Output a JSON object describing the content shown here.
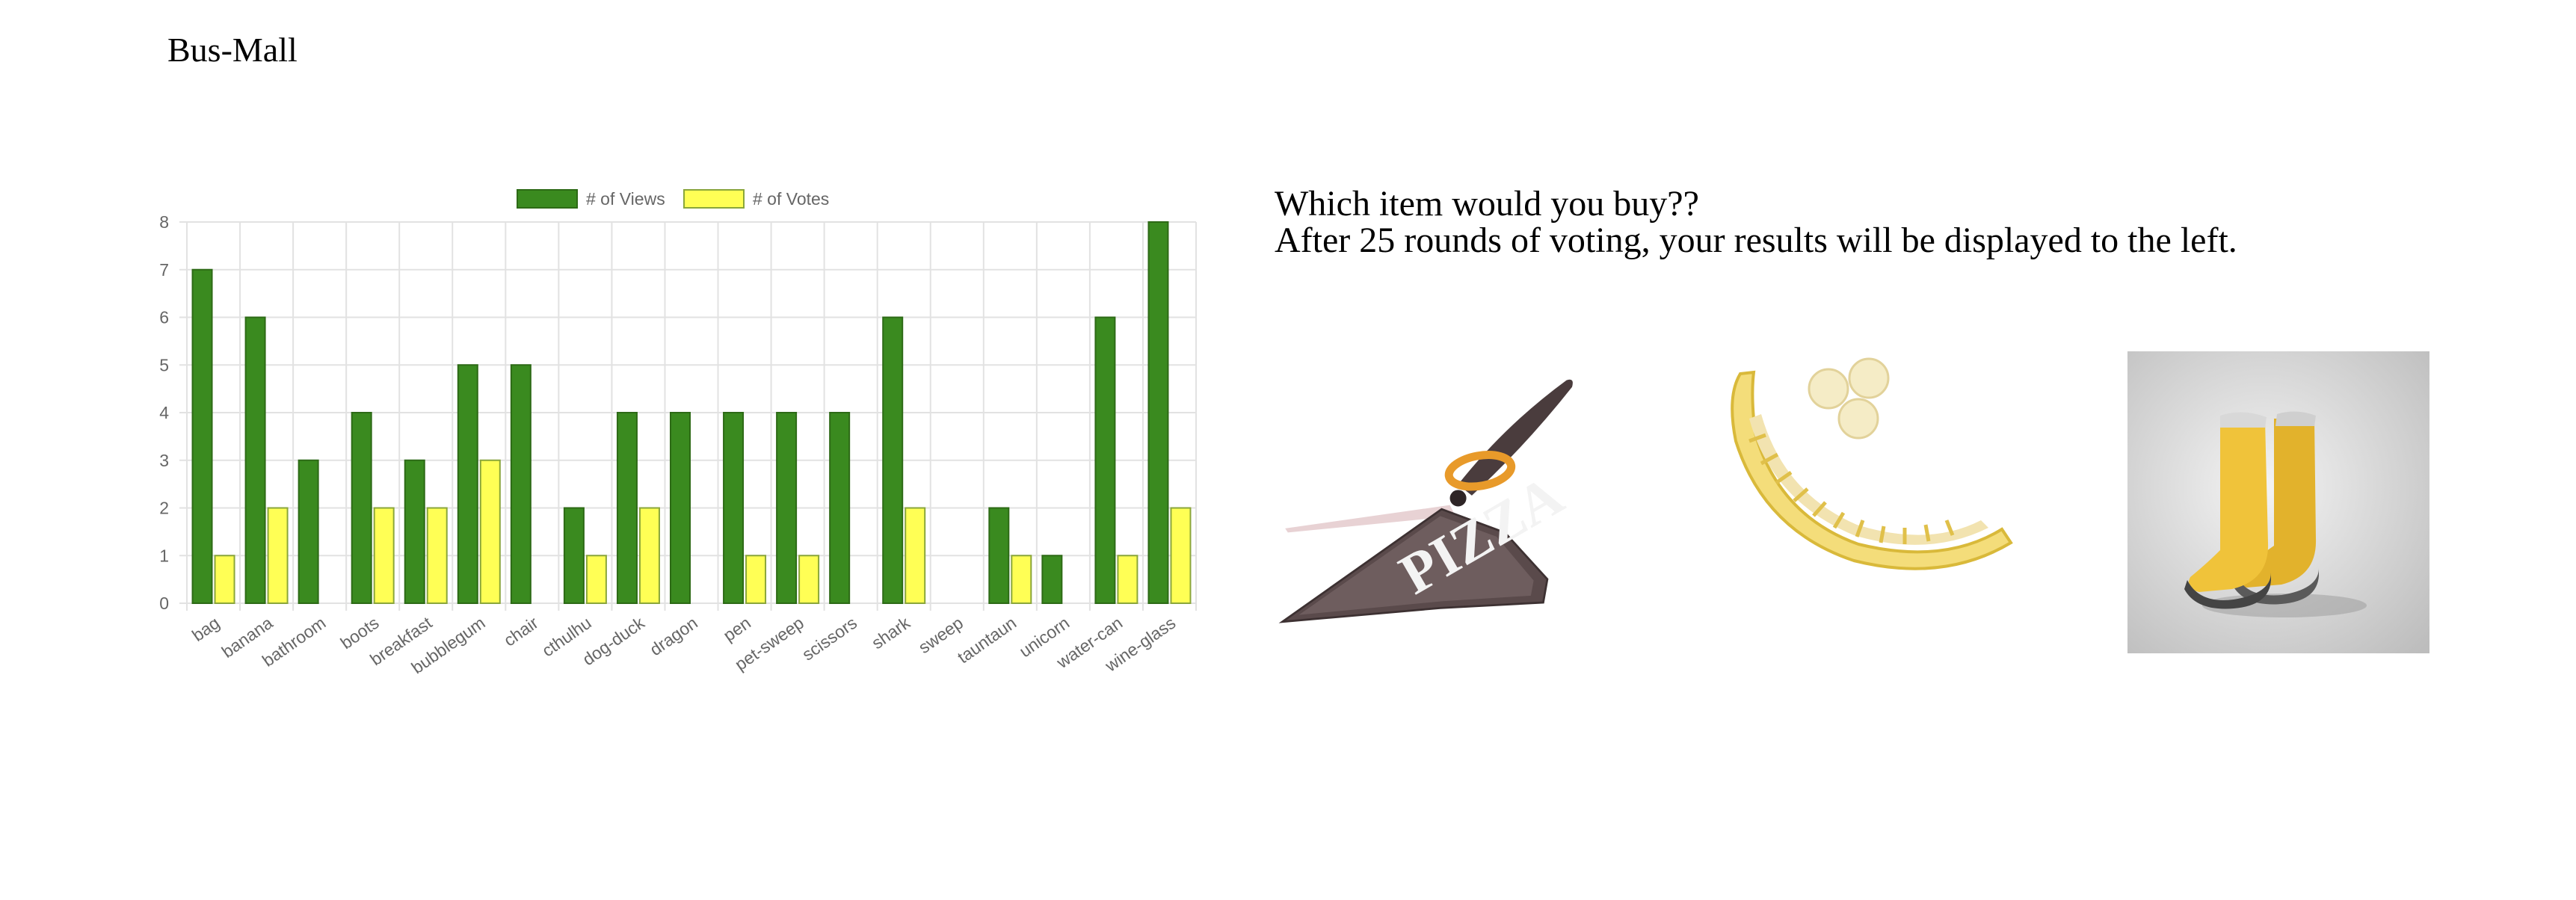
{
  "page": {
    "title": "Bus-Mall"
  },
  "prompt": {
    "line1": "Which item would you buy??",
    "line2": "After 25 rounds of voting, your results will be displayed to the left."
  },
  "products": [
    {
      "name": "scissors",
      "icon": "pizza-scissors-image"
    },
    {
      "name": "banana",
      "icon": "banana-slicer-image"
    },
    {
      "name": "boots",
      "icon": "yellow-rain-boots-image"
    }
  ],
  "colors": {
    "views_fill": "#3a8a1f",
    "views_border": "#2d6a16",
    "votes_fill": "#ffff55",
    "votes_border": "#8aa63a",
    "grid": "#e2e2e2",
    "tick_text": "#666666"
  },
  "chart_data": {
    "type": "bar",
    "categories": [
      "bag",
      "banana",
      "bathroom",
      "boots",
      "breakfast",
      "bubblegum",
      "chair",
      "cthulhu",
      "dog-duck",
      "dragon",
      "pen",
      "pet-sweep",
      "scissors",
      "shark",
      "sweep",
      "tauntaun",
      "unicorn",
      "water-can",
      "wine-glass"
    ],
    "series": [
      {
        "name": "# of Views",
        "values": [
          7,
          6,
          3,
          4,
          3,
          5,
          5,
          2,
          4,
          4,
          4,
          4,
          4,
          6,
          0,
          2,
          1,
          6,
          8
        ]
      },
      {
        "name": "# of Votes",
        "values": [
          1,
          2,
          0,
          2,
          2,
          3,
          0,
          1,
          2,
          0,
          1,
          1,
          0,
          2,
          0,
          1,
          0,
          1,
          2
        ]
      }
    ],
    "yticks": [
      "0",
      "1",
      "2",
      "3",
      "4",
      "5",
      "6",
      "7",
      "8"
    ],
    "ylim": [
      0,
      8
    ],
    "grid": true,
    "legend": "top-center"
  }
}
